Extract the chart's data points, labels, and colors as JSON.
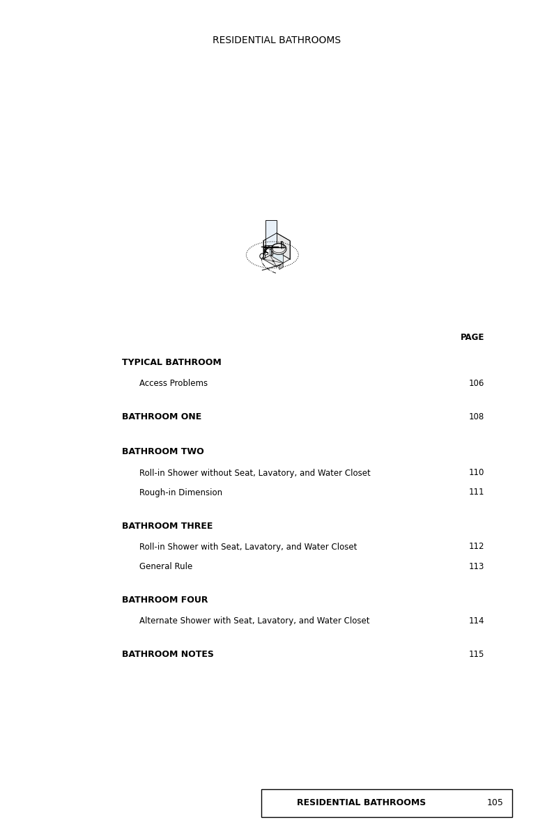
{
  "title": "RESIDENTIAL BATHROOMS",
  "bg_color": "#ffffff",
  "page_label": "PAGE",
  "entries": [
    {
      "heading": "TYPICAL BATHROOM",
      "subentries": [
        {
          "text": "Access Problems",
          "page": "106"
        }
      ],
      "page": null
    },
    {
      "heading": "BATHROOM ONE",
      "subentries": [],
      "page": "108"
    },
    {
      "heading": "BATHROOM TWO",
      "subentries": [
        {
          "text": "Roll-in Shower without Seat, Lavatory, and Water Closet",
          "page": "110"
        },
        {
          "text": "Rough-in Dimension",
          "page": "111"
        }
      ],
      "page": null
    },
    {
      "heading": "BATHROOM THREE",
      "subentries": [
        {
          "text": "Roll-in Shower with Seat, Lavatory, and Water Closet",
          "page": "112"
        },
        {
          "text": "General Rule",
          "page": "113"
        }
      ],
      "page": null
    },
    {
      "heading": "BATHROOM FOUR",
      "subentries": [
        {
          "text": "Alternate Shower with Seat, Lavatory, and Water Closet",
          "page": "114"
        }
      ],
      "page": null
    },
    {
      "heading": "BATHROOM NOTES",
      "subentries": [],
      "page": "115"
    }
  ],
  "footer_text": "RESIDENTIAL BATHROOMS",
  "footer_page": "105",
  "text_color": "#000000",
  "heading_font_size": 9.0,
  "sub_font_size": 8.5,
  "page_font_size": 8.5
}
